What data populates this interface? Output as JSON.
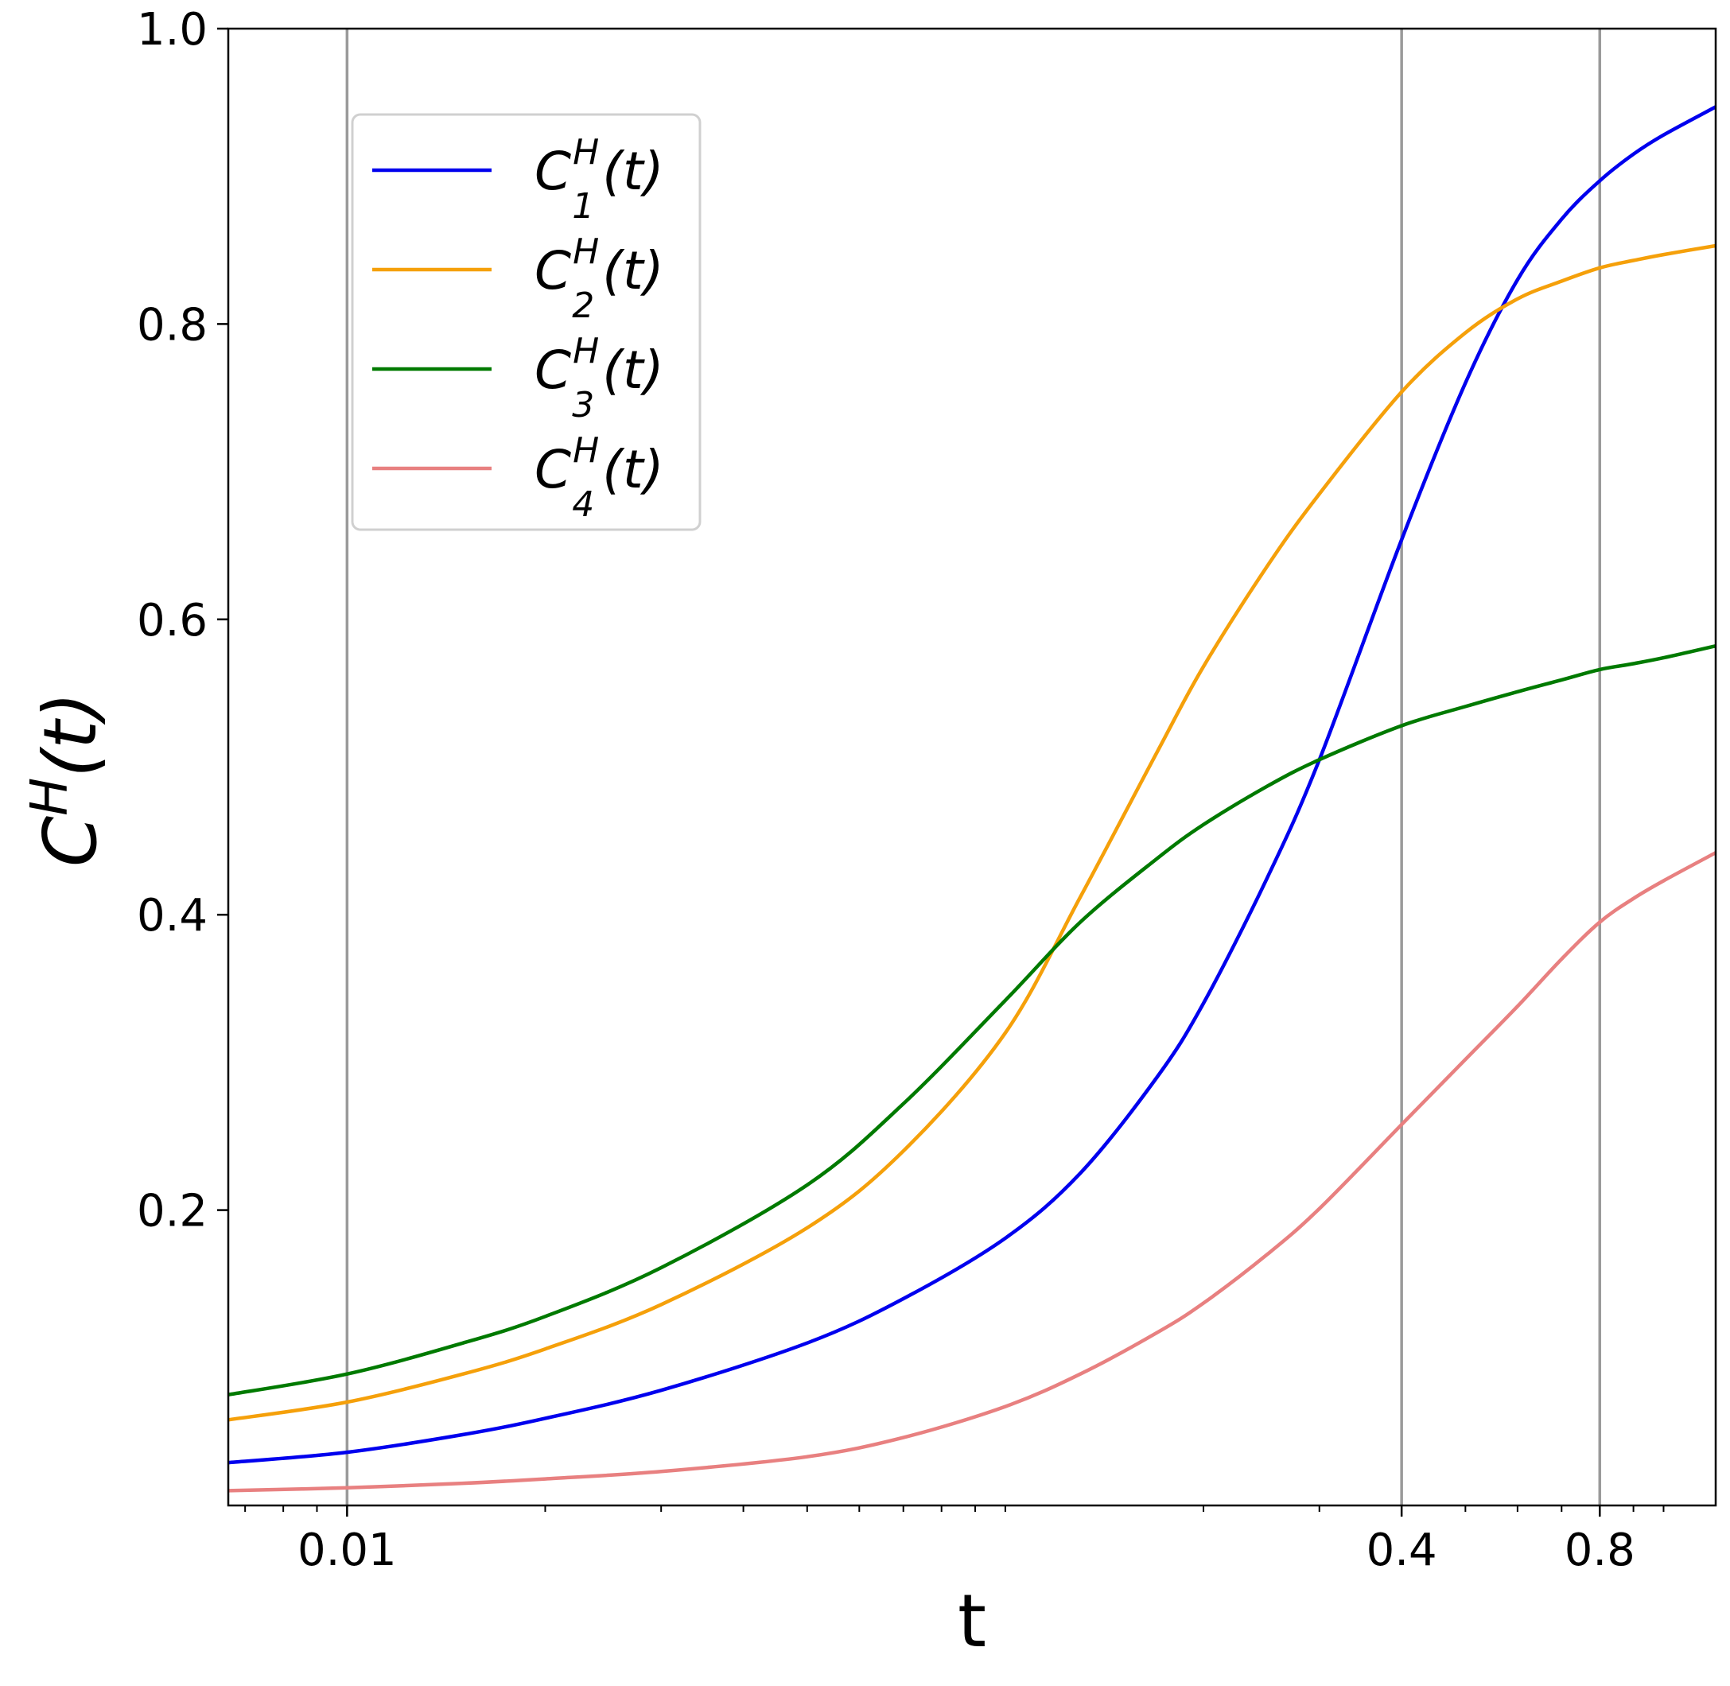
{
  "chart_data": {
    "type": "line",
    "title": "",
    "xlabel": "t",
    "ylabel": "C",
    "ylabel_superscript": "H",
    "ylabel_suffix": "(t)",
    "xscale": "log",
    "xlim": [
      0.0066,
      1.2
    ],
    "ylim": [
      0.0,
      1.0
    ],
    "grid": false,
    "vertical_reference_lines": [
      0.01,
      0.4,
      0.8
    ],
    "x_ticks": [
      {
        "value": 0.01,
        "label": "0.01"
      },
      {
        "value": 0.4,
        "label": "0.4"
      },
      {
        "value": 0.8,
        "label": "0.8"
      }
    ],
    "y_ticks": [
      {
        "value": 0.2,
        "label": "0.2"
      },
      {
        "value": 0.4,
        "label": "0.4"
      },
      {
        "value": 0.6,
        "label": "0.6"
      },
      {
        "value": 0.8,
        "label": "0.8"
      },
      {
        "value": 1.0,
        "label": "1.0"
      }
    ],
    "legend": {
      "placement": "upper-left"
    },
    "series": [
      {
        "name": "C_1^H(t)",
        "label_main": "C",
        "label_sup": "H",
        "label_sub": "1",
        "label_suffix": "(t)",
        "color": "#0000ee",
        "x": [
          0.0066,
          0.01,
          0.015,
          0.02,
          0.03,
          0.05,
          0.07,
          0.1,
          0.13,
          0.17,
          0.2,
          0.25,
          0.3,
          0.4,
          0.5,
          0.6,
          0.7,
          0.8,
          0.9,
          1.0,
          1.2
        ],
        "y": [
          0.029,
          0.036,
          0.048,
          0.059,
          0.078,
          0.11,
          0.14,
          0.181,
          0.225,
          0.29,
          0.34,
          0.425,
          0.505,
          0.654,
          0.76,
          0.83,
          0.871,
          0.897,
          0.915,
          0.928,
          0.947
        ]
      },
      {
        "name": "C_2^H(t)",
        "label_main": "C",
        "label_sup": "H",
        "label_sub": "2",
        "label_suffix": "(t)",
        "color": "#f5a00a",
        "x": [
          0.0066,
          0.01,
          0.015,
          0.02,
          0.03,
          0.05,
          0.07,
          0.1,
          0.13,
          0.17,
          0.2,
          0.25,
          0.3,
          0.4,
          0.5,
          0.6,
          0.7,
          0.8,
          0.9,
          1.0,
          1.2
        ],
        "y": [
          0.058,
          0.07,
          0.089,
          0.106,
          0.136,
          0.188,
          0.24,
          0.32,
          0.412,
          0.51,
          0.568,
          0.636,
          0.685,
          0.754,
          0.794,
          0.817,
          0.829,
          0.838,
          0.843,
          0.847,
          0.853
        ]
      },
      {
        "name": "C_3^H(t)",
        "label_main": "C",
        "label_sup": "H",
        "label_sub": "3",
        "label_suffix": "(t)",
        "color": "#007a00",
        "x": [
          0.0066,
          0.01,
          0.015,
          0.02,
          0.03,
          0.05,
          0.07,
          0.1,
          0.13,
          0.17,
          0.2,
          0.25,
          0.3,
          0.4,
          0.5,
          0.6,
          0.7,
          0.8,
          0.9,
          1.0,
          1.2
        ],
        "y": [
          0.075,
          0.089,
          0.11,
          0.128,
          0.161,
          0.217,
          0.272,
          0.342,
          0.395,
          0.438,
          0.461,
          0.487,
          0.505,
          0.528,
          0.541,
          0.551,
          0.559,
          0.566,
          0.57,
          0.574,
          0.582
        ]
      },
      {
        "name": "C_4^H(t)",
        "label_main": "C",
        "label_sup": "H",
        "label_sub": "4",
        "label_suffix": "(t)",
        "color": "#e88080",
        "x": [
          0.0066,
          0.01,
          0.015,
          0.02,
          0.03,
          0.05,
          0.07,
          0.1,
          0.13,
          0.17,
          0.2,
          0.25,
          0.3,
          0.4,
          0.5,
          0.6,
          0.7,
          0.8,
          0.9,
          1.0,
          1.2
        ],
        "y": [
          0.01,
          0.012,
          0.015,
          0.018,
          0.023,
          0.033,
          0.046,
          0.067,
          0.089,
          0.117,
          0.137,
          0.17,
          0.201,
          0.258,
          0.302,
          0.338,
          0.37,
          0.395,
          0.411,
          0.423,
          0.442
        ]
      }
    ]
  }
}
